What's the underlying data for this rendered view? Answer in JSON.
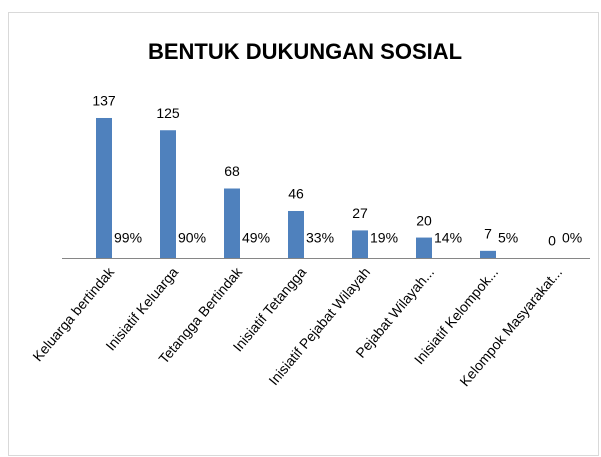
{
  "chart_data": {
    "type": "bar",
    "title": "BENTUK DUKUNGAN SOSIAL",
    "categories": [
      "Keluarga bertindak",
      "Inisiatif Keluarga",
      "Tetangga Bertindak",
      "Inisiatif Tetangga",
      "Inisiatif Pejabat Wilayah",
      "Pejabat Wilayah...",
      "Inisiatif Kelompok...",
      "Kelompok Masyarakat..."
    ],
    "values": [
      137,
      125,
      68,
      46,
      27,
      20,
      7,
      0
    ],
    "color": "#4f81bd",
    "percent_values": [
      99,
      90,
      49,
      33,
      19,
      14,
      5,
      0
    ],
    "percent_value_labels": [
      "99%",
      "90%",
      "49%",
      "33%",
      "19%",
      "14%",
      "5%",
      "0%"
    ]
  }
}
